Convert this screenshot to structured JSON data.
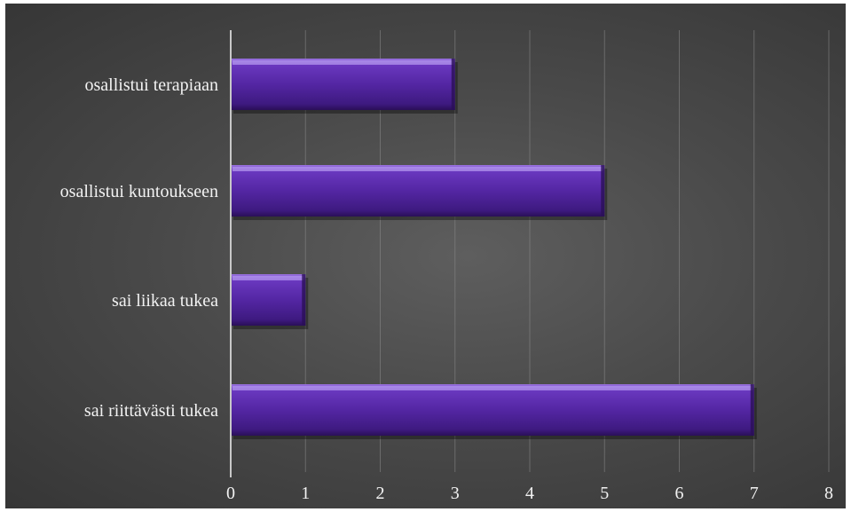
{
  "chart_data": {
    "type": "bar",
    "orientation": "horizontal",
    "categories": [
      "osallistui terapiaan",
      "osallistui kuntoukseen",
      "sai liikaa tukea",
      "sai riittävästi tukea"
    ],
    "values": [
      3,
      5,
      1,
      7
    ],
    "xlim": [
      0,
      8
    ],
    "ticks": [
      "0",
      "1",
      "2",
      "3",
      "4",
      "5",
      "6",
      "7",
      "8"
    ],
    "grid": true,
    "legend": "none",
    "colors": {
      "bar": "#5b2aa6",
      "bar_light": "#8c63d8",
      "bar_dark": "#2f1260",
      "background": "#4a4a4a",
      "grid": "#8a8a8a",
      "axis": "#c8c8c8",
      "text": "#f2f2f2"
    }
  }
}
